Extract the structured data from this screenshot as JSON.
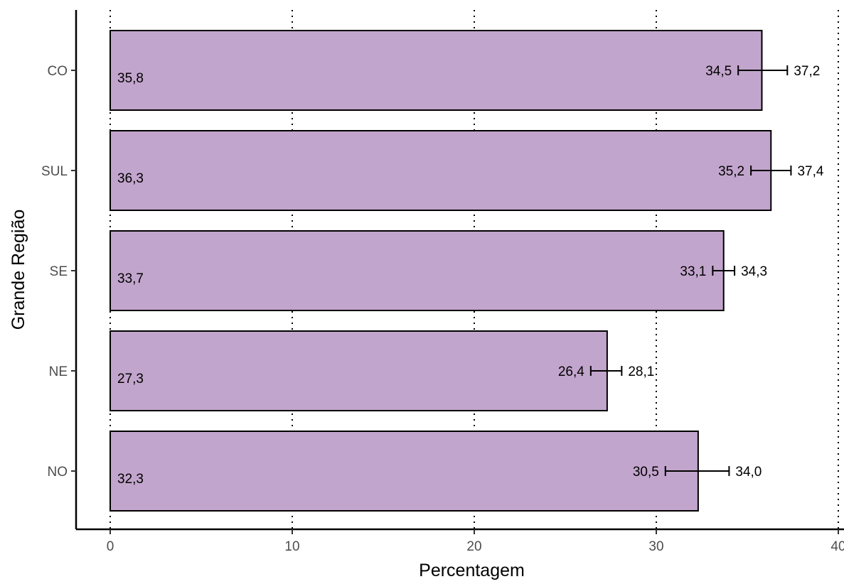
{
  "chart_data": {
    "type": "bar",
    "orientation": "horizontal",
    "xlabel": "Percentagem",
    "ylabel": "Grande Região",
    "xlim": [
      0,
      40
    ],
    "x_ticks": [
      0,
      10,
      20,
      30,
      40
    ],
    "x_tick_labels": [
      "0",
      "10",
      "20",
      "30",
      "40"
    ],
    "grid": "vertical dotted major lines",
    "bar_color": "#c2a5cc",
    "categories": [
      "CO",
      "SUL",
      "SE",
      "NE",
      "NO"
    ],
    "values": [
      35.8,
      36.3,
      33.7,
      27.3,
      32.3
    ],
    "value_labels": [
      "35,8",
      "36,3",
      "33,7",
      "27,3",
      "32,3"
    ],
    "error_low": [
      34.5,
      35.2,
      33.1,
      26.4,
      30.5
    ],
    "error_low_labels": [
      "34,5",
      "35,2",
      "33,1",
      "26,4",
      "30,5"
    ],
    "error_high": [
      37.2,
      37.4,
      34.3,
      28.1,
      34.0
    ],
    "error_high_labels": [
      "37,2",
      "37,4",
      "34,3",
      "28,1",
      "34,0"
    ]
  }
}
